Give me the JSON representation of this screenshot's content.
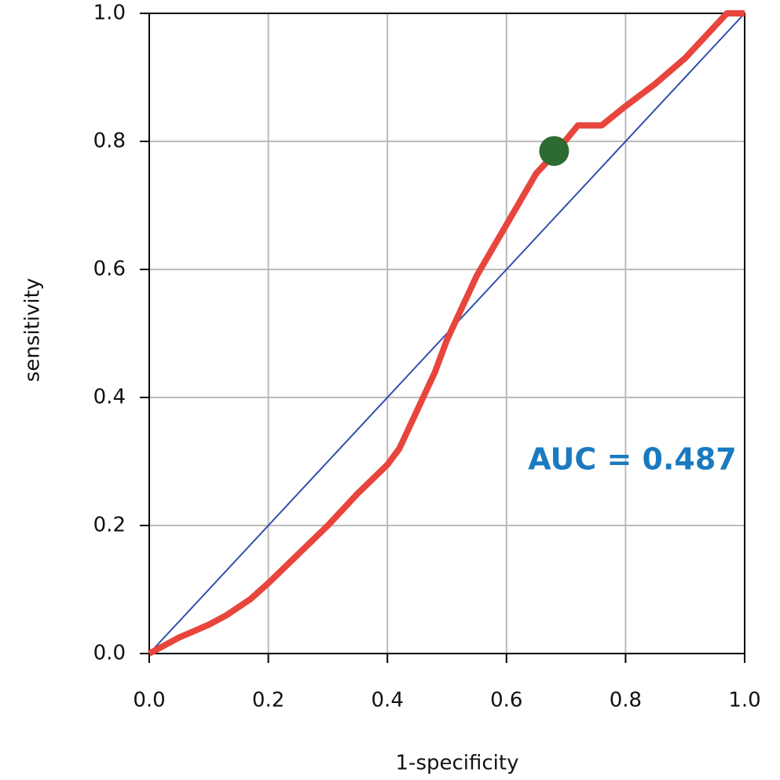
{
  "chart_data": {
    "type": "line",
    "xlabel": "1-specificity",
    "ylabel": "sensitivity",
    "xlim": [
      0,
      1
    ],
    "ylim": [
      0,
      1
    ],
    "xticks": [
      {
        "value": 0,
        "label": "0.0"
      },
      0.2,
      0.4,
      0.6,
      0.8,
      {
        "value": 1,
        "label": "1.0"
      }
    ],
    "yticks": [
      {
        "value": 0,
        "label": "0.0"
      },
      0.2,
      0.4,
      0.6,
      0.8,
      {
        "value": 1,
        "label": "1.0"
      }
    ],
    "grid": true,
    "series": [
      {
        "color": "#e8453c",
        "x": [
          0,
          0.02,
          0.05,
          0.1,
          0.13,
          0.17,
          0.2,
          0.25,
          0.3,
          0.35,
          0.4,
          0.42,
          0.45,
          0.48,
          0.5,
          0.55,
          0.6,
          0.65,
          0.68,
          0.72,
          0.76,
          0.8,
          0.85,
          0.9,
          0.95,
          0.97,
          1.0
        ],
        "values": [
          0,
          0.01,
          0.025,
          0.045,
          0.06,
          0.085,
          0.11,
          0.155,
          0.2,
          0.25,
          0.295,
          0.32,
          0.38,
          0.44,
          0.49,
          0.59,
          0.67,
          0.75,
          0.78,
          0.825,
          0.825,
          0.855,
          0.89,
          0.93,
          0.98,
          1.0,
          1.0
        ]
      },
      {
        "color": "#3050b0",
        "x": [
          0,
          1
        ],
        "values": [
          0,
          1
        ]
      }
    ],
    "point": {
      "x": 0.68,
      "y": 0.785,
      "color": "#2e6b30"
    },
    "annotation": {
      "text": "AUC = 0.487",
      "color": "#1a7abf"
    }
  }
}
